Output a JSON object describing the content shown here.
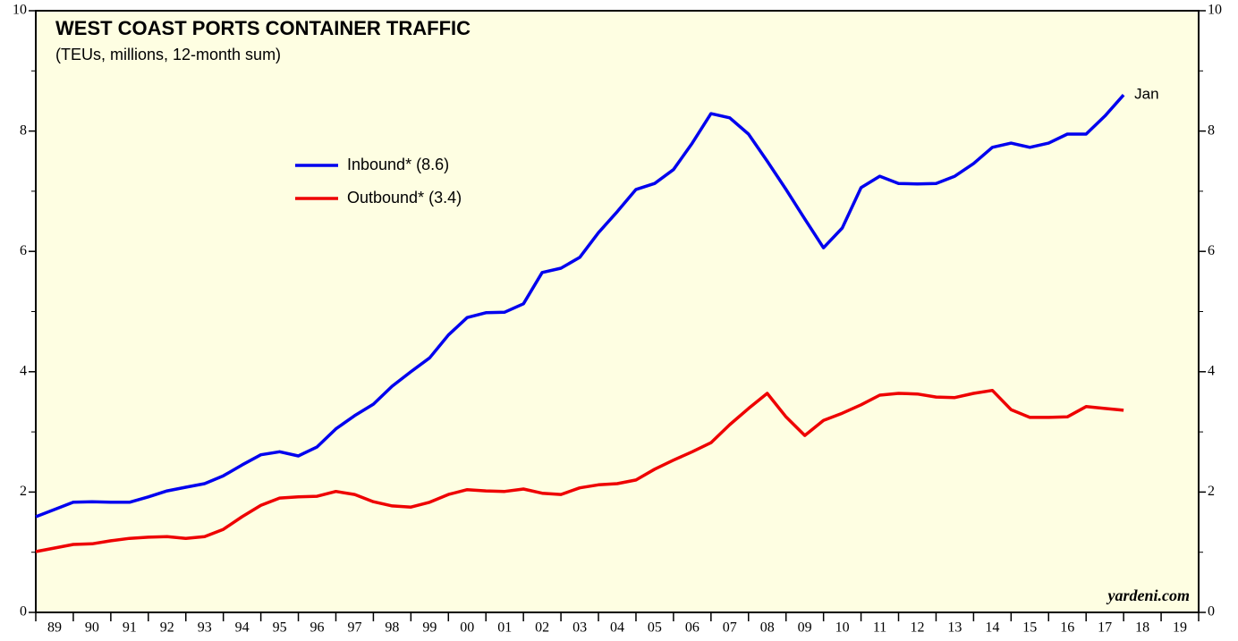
{
  "chart_data": {
    "type": "line",
    "title": "WEST COAST PORTS CONTAINER TRAFFIC",
    "subtitle": "(TEUs, millions, 12-month sum)",
    "annotation": "Jan",
    "source": "yardeni.com",
    "x": [
      1989.0,
      1989.5,
      1990.0,
      1990.5,
      1991.0,
      1991.5,
      1992.0,
      1992.5,
      1993.0,
      1993.5,
      1994.0,
      1994.5,
      1995.0,
      1995.5,
      1996.0,
      1996.5,
      1997.0,
      1997.5,
      1998.0,
      1998.5,
      1999.0,
      1999.5,
      2000.0,
      2000.5,
      2001.0,
      2001.5,
      2002.0,
      2002.5,
      2003.0,
      2003.5,
      2004.0,
      2004.5,
      2005.0,
      2005.5,
      2006.0,
      2006.5,
      2007.0,
      2007.5,
      2008.0,
      2008.5,
      2009.0,
      2009.5,
      2010.0,
      2010.5,
      2011.0,
      2011.5,
      2012.0,
      2012.5,
      2013.0,
      2013.5,
      2014.0,
      2014.5,
      2015.0,
      2015.5,
      2016.0,
      2016.5,
      2017.0,
      2017.5,
      2018.0
    ],
    "series": [
      {
        "name": "Inbound* (8.6)",
        "color": "#0000ee",
        "values": [
          1.59,
          1.71,
          1.83,
          1.84,
          1.83,
          1.83,
          1.92,
          2.02,
          2.08,
          2.14,
          2.27,
          2.45,
          2.62,
          2.67,
          2.6,
          2.75,
          3.05,
          3.27,
          3.46,
          3.76,
          4.0,
          4.23,
          4.61,
          4.9,
          4.98,
          4.99,
          5.13,
          5.65,
          5.72,
          5.9,
          6.31,
          6.66,
          7.03,
          7.13,
          7.36,
          7.8,
          8.29,
          8.22,
          7.95,
          7.5,
          7.03,
          6.54,
          6.06,
          6.39,
          7.06,
          7.25,
          7.13,
          7.12,
          7.13,
          7.25,
          7.46,
          7.73,
          7.8,
          7.73,
          7.8,
          7.95,
          7.95,
          8.25,
          8.6
        ]
      },
      {
        "name": "Outbound* (3.4)",
        "color": "#ee0000",
        "values": [
          1.01,
          1.07,
          1.13,
          1.14,
          1.19,
          1.23,
          1.25,
          1.26,
          1.23,
          1.26,
          1.38,
          1.59,
          1.78,
          1.9,
          1.92,
          1.93,
          2.01,
          1.96,
          1.84,
          1.77,
          1.75,
          1.83,
          1.96,
          2.04,
          2.02,
          2.01,
          2.05,
          1.98,
          1.96,
          2.07,
          2.12,
          2.14,
          2.2,
          2.38,
          2.53,
          2.67,
          2.82,
          3.12,
          3.39,
          3.64,
          3.25,
          2.94,
          3.19,
          3.31,
          3.45,
          3.61,
          3.64,
          3.63,
          3.58,
          3.57,
          3.64,
          3.69,
          3.37,
          3.24,
          3.24,
          3.25,
          3.42,
          3.39,
          3.36
        ]
      }
    ],
    "xlim": [
      1989,
      2020
    ],
    "xticks": [
      {
        "value": 1989.5,
        "label": "89"
      },
      {
        "value": 1990.5,
        "label": "90"
      },
      {
        "value": 1991.5,
        "label": "91"
      },
      {
        "value": 1992.5,
        "label": "92"
      },
      {
        "value": 1993.5,
        "label": "93"
      },
      {
        "value": 1994.5,
        "label": "94"
      },
      {
        "value": 1995.5,
        "label": "95"
      },
      {
        "value": 1996.5,
        "label": "96"
      },
      {
        "value": 1997.5,
        "label": "97"
      },
      {
        "value": 1998.5,
        "label": "98"
      },
      {
        "value": 1999.5,
        "label": "99"
      },
      {
        "value": 2000.5,
        "label": "00"
      },
      {
        "value": 2001.5,
        "label": "01"
      },
      {
        "value": 2002.5,
        "label": "02"
      },
      {
        "value": 2003.5,
        "label": "03"
      },
      {
        "value": 2004.5,
        "label": "04"
      },
      {
        "value": 2005.5,
        "label": "05"
      },
      {
        "value": 2006.5,
        "label": "06"
      },
      {
        "value": 2007.5,
        "label": "07"
      },
      {
        "value": 2008.5,
        "label": "08"
      },
      {
        "value": 2009.5,
        "label": "09"
      },
      {
        "value": 2010.5,
        "label": "10"
      },
      {
        "value": 2011.5,
        "label": "11"
      },
      {
        "value": 2012.5,
        "label": "12"
      },
      {
        "value": 2013.5,
        "label": "13"
      },
      {
        "value": 2014.5,
        "label": "14"
      },
      {
        "value": 2015.5,
        "label": "15"
      },
      {
        "value": 2016.5,
        "label": "16"
      },
      {
        "value": 2017.5,
        "label": "17"
      },
      {
        "value": 2018.5,
        "label": "18"
      },
      {
        "value": 2019.5,
        "label": "19"
      }
    ],
    "ylim": [
      0,
      10
    ],
    "yticks": [
      0,
      2,
      4,
      6,
      8,
      10
    ],
    "grid": false,
    "background": "#fefee2"
  }
}
